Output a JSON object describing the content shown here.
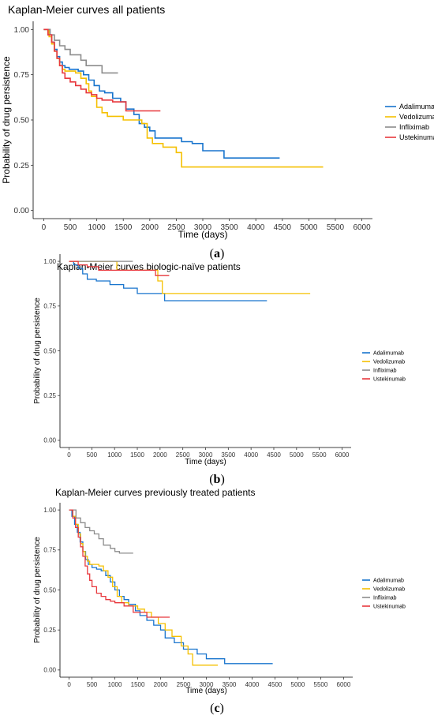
{
  "colors": {
    "Adalimumab": "#1874CD",
    "Vedolizumab": "#F5C000",
    "Infliximab": "#8C8C8C",
    "Ustekinumab": "#E8383D"
  },
  "chart_data": [
    {
      "type": "line",
      "step": true,
      "title": "Kaplan-Meier curves all patients",
      "xlabel": "Time (days)",
      "ylabel": "Probability of drug persistence",
      "xlim": [
        0,
        6000
      ],
      "ylim": [
        0,
        1
      ],
      "xticks": [
        "0",
        "500",
        "1000",
        "1500",
        "2000",
        "2500",
        "3000",
        "3500",
        "4000",
        "4500",
        "5000",
        "5500",
        "6000"
      ],
      "yticks": [
        "0.00",
        "0.25",
        "0.50",
        "0.75",
        "1.00"
      ],
      "legend_position": "right",
      "caption": "(a)",
      "series": [
        {
          "name": "Adalimumab",
          "x": [
            0,
            80,
            150,
            200,
            250,
            300,
            350,
            400,
            480,
            550,
            650,
            750,
            850,
            950,
            1050,
            1150,
            1300,
            1450,
            1550,
            1700,
            1800,
            1900,
            2000,
            2100,
            2300,
            2600,
            2800,
            3000,
            3400,
            4450
          ],
          "y": [
            1,
            0.97,
            0.93,
            0.89,
            0.85,
            0.82,
            0.8,
            0.79,
            0.78,
            0.78,
            0.77,
            0.75,
            0.72,
            0.69,
            0.66,
            0.65,
            0.62,
            0.6,
            0.56,
            0.53,
            0.48,
            0.46,
            0.44,
            0.4,
            0.4,
            0.38,
            0.37,
            0.33,
            0.29,
            0.29
          ]
        },
        {
          "name": "Vedolizumab",
          "x": [
            0,
            100,
            150,
            200,
            250,
            300,
            350,
            400,
            500,
            600,
            700,
            800,
            850,
            900,
            1000,
            1100,
            1200,
            1300,
            1500,
            1700,
            1850,
            1950,
            2050,
            2250,
            2500,
            2600,
            5270
          ],
          "y": [
            1,
            0.96,
            0.92,
            0.88,
            0.84,
            0.8,
            0.78,
            0.77,
            0.77,
            0.76,
            0.73,
            0.7,
            0.66,
            0.63,
            0.57,
            0.54,
            0.52,
            0.52,
            0.5,
            0.5,
            0.48,
            0.4,
            0.37,
            0.35,
            0.32,
            0.24,
            0.24
          ]
        },
        {
          "name": "Infliximab",
          "x": [
            0,
            120,
            200,
            300,
            400,
            500,
            700,
            800,
            1000,
            1100,
            1200,
            1400
          ],
          "y": [
            1,
            0.97,
            0.94,
            0.91,
            0.89,
            0.86,
            0.83,
            0.8,
            0.8,
            0.76,
            0.76,
            0.76
          ]
        },
        {
          "name": "Ustekinumab",
          "x": [
            0,
            80,
            150,
            200,
            250,
            300,
            350,
            400,
            500,
            600,
            700,
            800,
            900,
            1000,
            1100,
            1200,
            1300,
            1550,
            2200
          ],
          "y": [
            1,
            0.97,
            0.93,
            0.88,
            0.84,
            0.8,
            0.76,
            0.73,
            0.71,
            0.69,
            0.67,
            0.65,
            0.64,
            0.62,
            0.61,
            0.61,
            0.6,
            0.55,
            0.55
          ]
        }
      ]
    },
    {
      "type": "line",
      "step": true,
      "title": "Kaplan-Meier curves biologic-naïve patients",
      "xlabel": "Time (days)",
      "ylabel": "Probability of drug persistence",
      "xlim": [
        0,
        6000
      ],
      "ylim": [
        0,
        1
      ],
      "xticks": [
        "0",
        "500",
        "1000",
        "1500",
        "2000",
        "2500",
        "3000",
        "3500",
        "4000",
        "4500",
        "5000",
        "5500",
        "6000"
      ],
      "yticks": [
        "0.00",
        "0.25",
        "0.50",
        "0.75",
        "1.00"
      ],
      "legend_position": "right",
      "caption": "(b)",
      "series": [
        {
          "name": "Adalimumab",
          "x": [
            0,
            100,
            200,
            300,
            400,
            600,
            900,
            1200,
            1500,
            2100,
            4350
          ],
          "y": [
            1,
            0.98,
            0.96,
            0.93,
            0.9,
            0.89,
            0.87,
            0.85,
            0.82,
            0.78,
            0.78
          ]
        },
        {
          "name": "Vedolizumab",
          "x": [
            0,
            1050,
            1950,
            2050,
            5300
          ],
          "y": [
            1,
            0.95,
            0.89,
            0.82,
            0.82
          ]
        },
        {
          "name": "Infliximab",
          "x": [
            0,
            700,
            1400
          ],
          "y": [
            1,
            1,
            1
          ]
        },
        {
          "name": "Ustekinumab",
          "x": [
            0,
            200,
            400,
            650,
            1900,
            2200
          ],
          "y": [
            1,
            0.98,
            0.97,
            0.95,
            0.92,
            0.92
          ]
        }
      ]
    },
    {
      "type": "line",
      "step": true,
      "title": "Kaplan-Meier curves previously treated patients",
      "xlabel": "Time (days)",
      "ylabel": "Probability of drug persistence",
      "xlim": [
        0,
        6000
      ],
      "ylim": [
        0,
        1
      ],
      "xticks": [
        "0",
        "500",
        "1000",
        "1500",
        "2000",
        "2500",
        "3000",
        "3500",
        "4000",
        "4500",
        "5000",
        "5500",
        "6000"
      ],
      "yticks": [
        "0.00",
        "0.25",
        "0.50",
        "0.75",
        "1.00"
      ],
      "legend_position": "right",
      "caption": "(c)",
      "series": [
        {
          "name": "Adalimumab",
          "x": [
            0,
            60,
            120,
            180,
            240,
            300,
            360,
            420,
            500,
            600,
            700,
            800,
            900,
            1000,
            1100,
            1200,
            1300,
            1450,
            1550,
            1700,
            1850,
            2000,
            2100,
            2300,
            2500,
            2800,
            3000,
            3400,
            4450
          ],
          "y": [
            1,
            0.96,
            0.91,
            0.86,
            0.8,
            0.74,
            0.69,
            0.66,
            0.64,
            0.63,
            0.62,
            0.59,
            0.55,
            0.5,
            0.46,
            0.44,
            0.41,
            0.37,
            0.34,
            0.31,
            0.28,
            0.25,
            0.2,
            0.17,
            0.13,
            0.1,
            0.07,
            0.04,
            0.04
          ]
        },
        {
          "name": "Vedolizumab",
          "x": [
            0,
            80,
            140,
            200,
            250,
            300,
            350,
            400,
            450,
            550,
            650,
            750,
            850,
            950,
            1050,
            1150,
            1300,
            1500,
            1650,
            1800,
            1950,
            2100,
            2250,
            2450,
            2600,
            2700,
            3250
          ],
          "y": [
            1,
            0.96,
            0.91,
            0.85,
            0.79,
            0.74,
            0.71,
            0.68,
            0.66,
            0.66,
            0.65,
            0.62,
            0.58,
            0.52,
            0.46,
            0.42,
            0.4,
            0.38,
            0.36,
            0.33,
            0.29,
            0.25,
            0.21,
            0.15,
            0.1,
            0.03,
            0.03
          ]
        },
        {
          "name": "Infliximab",
          "x": [
            0,
            150,
            250,
            350,
            450,
            550,
            650,
            750,
            900,
            1000,
            1100,
            1400
          ],
          "y": [
            1,
            0.95,
            0.92,
            0.89,
            0.87,
            0.85,
            0.82,
            0.78,
            0.76,
            0.74,
            0.73,
            0.73
          ]
        },
        {
          "name": "Ustekinumab",
          "x": [
            0,
            80,
            140,
            200,
            250,
            300,
            350,
            400,
            450,
            500,
            600,
            700,
            800,
            900,
            1000,
            1200,
            1400,
            1700,
            2200
          ],
          "y": [
            1,
            0.95,
            0.89,
            0.83,
            0.77,
            0.71,
            0.65,
            0.6,
            0.56,
            0.52,
            0.48,
            0.46,
            0.44,
            0.43,
            0.42,
            0.4,
            0.36,
            0.33,
            0.33
          ]
        }
      ]
    }
  ]
}
